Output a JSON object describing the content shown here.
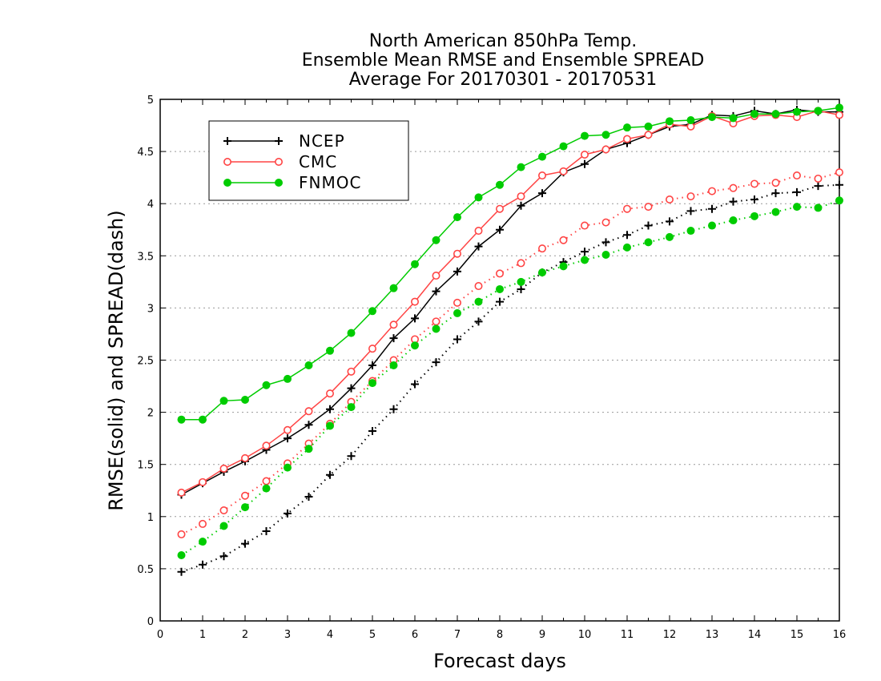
{
  "chart_data": {
    "type": "line",
    "title": [
      "North American 850hPa Temp.",
      "Ensemble Mean RMSE and Ensemble SPREAD",
      "Average For 20170301 - 20170531"
    ],
    "xlabel": "Forecast days",
    "ylabel": "RMSE(solid) and SPREAD(dash)",
    "xlim": [
      0,
      16
    ],
    "ylim": [
      0,
      5
    ],
    "xticks": [
      0,
      1,
      2,
      3,
      4,
      5,
      6,
      7,
      8,
      9,
      10,
      11,
      12,
      13,
      14,
      15,
      16
    ],
    "yticks": [
      0,
      0.5,
      1,
      1.5,
      2,
      2.5,
      3,
      3.5,
      4,
      4.5,
      5
    ],
    "ytick_labels": [
      "0",
      "0.5",
      "1",
      "1.5",
      "2",
      "2.5",
      "3",
      "3.5",
      "4",
      "4.5",
      "5"
    ],
    "grid": true,
    "legend_position": "top-left",
    "x": [
      0.5,
      1,
      1.5,
      2,
      2.5,
      3,
      3.5,
      4,
      4.5,
      5,
      5.5,
      6,
      6.5,
      7,
      7.5,
      8,
      8.5,
      9,
      9.5,
      10,
      10.5,
      11,
      11.5,
      12,
      12.5,
      13,
      13.5,
      14,
      14.5,
      15,
      15.5,
      16
    ],
    "series": [
      {
        "name": "NCEP",
        "color": "#000000",
        "marker": "plus",
        "style": "solid",
        "values": [
          1.21,
          1.32,
          1.43,
          1.53,
          1.64,
          1.75,
          1.88,
          2.03,
          2.23,
          2.45,
          2.71,
          2.9,
          3.16,
          3.35,
          3.59,
          3.75,
          3.98,
          4.1,
          4.3,
          4.38,
          4.52,
          4.58,
          4.66,
          4.74,
          4.76,
          4.85,
          4.84,
          4.89,
          4.86,
          4.9,
          4.88,
          4.88
        ]
      },
      {
        "name": "CMC",
        "color": "#ff4444",
        "marker": "circle-open",
        "style": "solid",
        "values": [
          1.23,
          1.33,
          1.46,
          1.56,
          1.68,
          1.83,
          2.01,
          2.18,
          2.39,
          2.61,
          2.84,
          3.06,
          3.31,
          3.52,
          3.74,
          3.95,
          4.07,
          4.27,
          4.31,
          4.47,
          4.52,
          4.62,
          4.66,
          4.76,
          4.74,
          4.84,
          4.77,
          4.84,
          4.85,
          4.83,
          4.89,
          4.85
        ]
      },
      {
        "name": "FNMOC",
        "color": "#00cc00",
        "marker": "circle-filled",
        "style": "solid",
        "values": [
          1.93,
          1.93,
          2.11,
          2.12,
          2.26,
          2.32,
          2.45,
          2.59,
          2.76,
          2.97,
          3.19,
          3.42,
          3.65,
          3.87,
          4.06,
          4.18,
          4.35,
          4.45,
          4.55,
          4.65,
          4.66,
          4.73,
          4.74,
          4.79,
          4.8,
          4.83,
          4.82,
          4.86,
          4.86,
          4.88,
          4.89,
          4.92
        ]
      },
      {
        "name": "",
        "color": "#000000",
        "marker": "plus",
        "style": "dash",
        "values": [
          0.47,
          0.54,
          0.62,
          0.74,
          0.86,
          1.03,
          1.19,
          1.4,
          1.58,
          1.82,
          2.03,
          2.27,
          2.48,
          2.7,
          2.87,
          3.06,
          3.18,
          3.34,
          3.44,
          3.54,
          3.63,
          3.7,
          3.79,
          3.83,
          3.93,
          3.95,
          4.02,
          4.04,
          4.1,
          4.11,
          4.17,
          4.18
        ]
      },
      {
        "name": "",
        "color": "#ff4444",
        "marker": "circle-open",
        "style": "dash",
        "values": [
          0.83,
          0.93,
          1.06,
          1.2,
          1.34,
          1.51,
          1.7,
          1.89,
          2.1,
          2.3,
          2.5,
          2.7,
          2.87,
          3.05,
          3.21,
          3.33,
          3.43,
          3.57,
          3.65,
          3.79,
          3.82,
          3.95,
          3.97,
          4.04,
          4.07,
          4.12,
          4.15,
          4.19,
          4.2,
          4.27,
          4.24,
          4.3
        ]
      },
      {
        "name": "",
        "color": "#00cc00",
        "marker": "circle-filled",
        "style": "dash",
        "values": [
          0.63,
          0.76,
          0.91,
          1.09,
          1.27,
          1.47,
          1.65,
          1.87,
          2.05,
          2.28,
          2.45,
          2.64,
          2.8,
          2.95,
          3.06,
          3.18,
          3.25,
          3.34,
          3.4,
          3.46,
          3.51,
          3.58,
          3.63,
          3.68,
          3.74,
          3.79,
          3.84,
          3.88,
          3.92,
          3.97,
          3.96,
          4.03
        ]
      }
    ]
  }
}
